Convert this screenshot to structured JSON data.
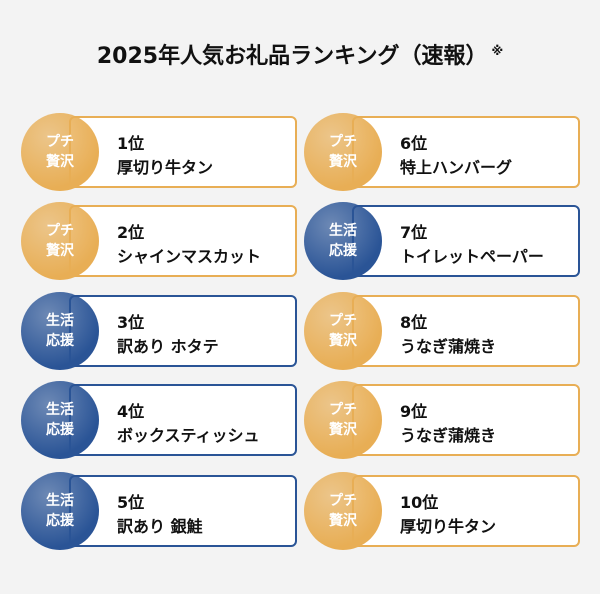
{
  "header": {
    "title": "2025年人気お礼品ランキング（速報）",
    "note": "※"
  },
  "items": [
    {
      "badge": [
        "プチ",
        "贅沢"
      ],
      "color": "#e8ae55",
      "rank": "1位",
      "name": "厚切り牛タン"
    },
    {
      "badge": [
        "プチ",
        "贅沢"
      ],
      "color": "#e8ae55",
      "rank": "2位",
      "name": "シャインマスカット"
    },
    {
      "badge": [
        "生活",
        "応援"
      ],
      "color": "#2a5496",
      "rank": "3位",
      "name": "訳あり ホタテ"
    },
    {
      "badge": [
        "生活",
        "応援"
      ],
      "color": "#2a5496",
      "rank": "4位",
      "name": "ボックスティッシュ"
    },
    {
      "badge": [
        "生活",
        "応援"
      ],
      "color": "#2a5496",
      "rank": "5位",
      "name": "訳あり 銀鮭"
    },
    {
      "badge": [
        "プチ",
        "贅沢"
      ],
      "color": "#e8ae55",
      "rank": "6位",
      "name": "特上ハンバーグ"
    },
    {
      "badge": [
        "生活",
        "応援"
      ],
      "color": "#2a5496",
      "rank": "7位",
      "name": "トイレットペーパー"
    },
    {
      "badge": [
        "プチ",
        "贅沢"
      ],
      "color": "#e8ae55",
      "rank": "8位",
      "name": "うなぎ蒲焼き"
    },
    {
      "badge": [
        "プチ",
        "贅沢"
      ],
      "color": "#e8ae55",
      "rank": "9位",
      "name": "うなぎ蒲焼き"
    },
    {
      "badge": [
        "プチ",
        "贅沢"
      ],
      "color": "#e8ae55",
      "rank": "10位",
      "name": "厚切り牛タン"
    }
  ]
}
